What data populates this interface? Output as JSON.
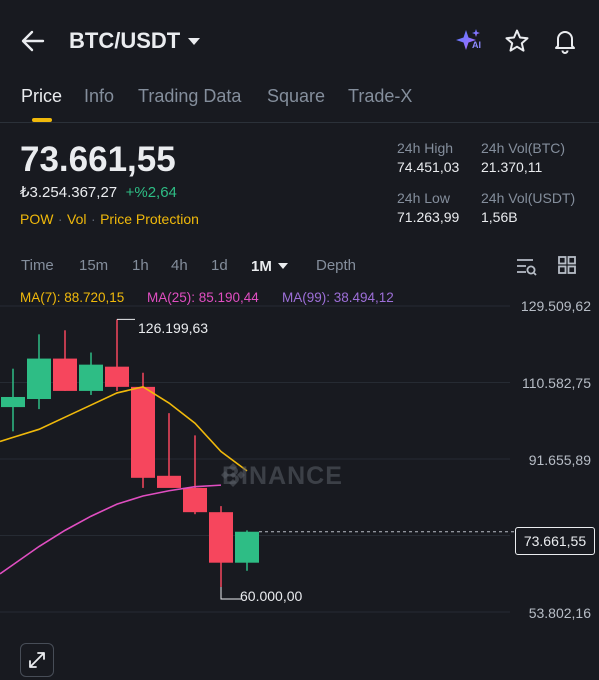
{
  "header": {
    "pair": "BTC/USDT",
    "ai_label": "AI"
  },
  "tabs": [
    {
      "label": "Price",
      "active": true
    },
    {
      "label": "Info"
    },
    {
      "label": "Trading Data"
    },
    {
      "label": "Square"
    },
    {
      "label": "Trade-X"
    }
  ],
  "ticker": {
    "last_price": "73.661,55",
    "fiat_value": "₺3.254.367,27",
    "change": "+%2,64",
    "tags": [
      "POW",
      "Vol",
      "Price Protection"
    ],
    "stats": [
      {
        "label": "24h High",
        "value": "74.451,03"
      },
      {
        "label": "24h Vol(BTC)",
        "value": "21.370,11"
      },
      {
        "label": "24h Low",
        "value": "71.263,99"
      },
      {
        "label": "24h Vol(USDT)",
        "value": "1,56B"
      }
    ]
  },
  "timeframes": [
    "Time",
    "15m",
    "1h",
    "4h",
    "1d",
    "1M",
    "Depth"
  ],
  "active_timeframe": "1M",
  "ma": {
    "ma7": "MA(7): 88.720,15",
    "ma25": "MA(25): 85.190,44",
    "ma99": "MA(99): 38.494,12"
  },
  "colors": {
    "up": "#2ebd85",
    "down": "#f6465d",
    "ma7": "#f0b90b",
    "ma25": "#e04ec1",
    "ma99": "#9d6fd8",
    "accent": "#f0b90b"
  },
  "chart_data": {
    "type": "candlestick",
    "y_axis_ticks": [
      "129.509,62",
      "110.582,75",
      "91.655,89",
      "73.661,55",
      "53.802,16"
    ],
    "current_price": "73.661,55",
    "high_annotation": "126.199,63",
    "low_annotation": "60.000,00",
    "watermark": "BINANCE",
    "candles": [
      {
        "open": 104500,
        "high": 114000,
        "low": 98500,
        "close": 107000
      },
      {
        "open": 106500,
        "high": 122500,
        "low": 104000,
        "close": 116500
      },
      {
        "open": 116500,
        "high": 123500,
        "low": 108500,
        "close": 108500
      },
      {
        "open": 108500,
        "high": 118000,
        "low": 107500,
        "close": 115000
      },
      {
        "open": 114500,
        "high": 126199.63,
        "low": 108500,
        "close": 109500
      },
      {
        "open": 109500,
        "high": 113000,
        "low": 84500,
        "close": 87000
      },
      {
        "open": 87500,
        "high": 103000,
        "low": 85000,
        "close": 84500
      },
      {
        "open": 84500,
        "high": 97500,
        "low": 78000,
        "close": 78500
      },
      {
        "open": 78500,
        "high": 80000,
        "low": 60000,
        "close": 66000
      },
      {
        "open": 66000,
        "high": 74000,
        "low": 64000,
        "close": 73661.55
      }
    ],
    "ma7": [
      97000,
      99000,
      102000,
      105000,
      108000,
      109500,
      105500,
      100500,
      93500,
      88720.15
    ],
    "ma25": [
      65500,
      70000,
      74000,
      77500,
      80500,
      82500,
      83800,
      84800,
      85190.44
    ]
  }
}
